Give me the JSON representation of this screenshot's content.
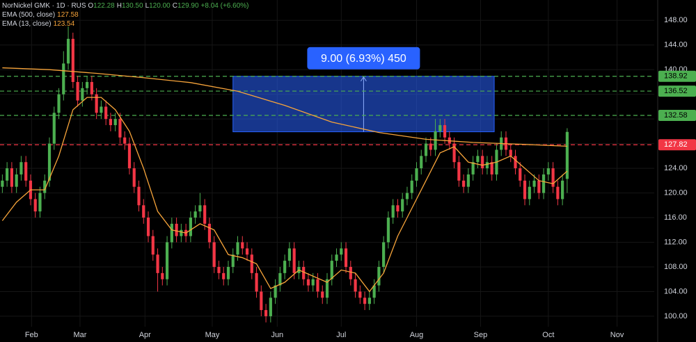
{
  "chart_data": {
    "type": "candlestick",
    "title": "NorNickel GMK · 1D · RUS",
    "header_items": [
      {
        "key": "O",
        "value": "122.28"
      },
      {
        "key": "H",
        "value": "130.50"
      },
      {
        "key": "L",
        "value": "120.00"
      },
      {
        "key": "C",
        "value": "129.90"
      },
      {
        "key": "",
        "value": "+8.04 (+6.60%)"
      }
    ],
    "up_color": "#4caf50",
    "down_color": "#f23645",
    "ohlc": [
      [
        121,
        123,
        120,
        122
      ],
      [
        122,
        125,
        121,
        124
      ],
      [
        124,
        125,
        120,
        121
      ],
      [
        121,
        124,
        120,
        123
      ],
      [
        123,
        126,
        122,
        125
      ],
      [
        125,
        126,
        121,
        122
      ],
      [
        122,
        123,
        118,
        119
      ],
      [
        119,
        120,
        116,
        117
      ],
      [
        117,
        121,
        116,
        120
      ],
      [
        120,
        123,
        119,
        122
      ],
      [
        122,
        129,
        121,
        128
      ],
      [
        128,
        134,
        127,
        133
      ],
      [
        133,
        137,
        132,
        136
      ],
      [
        136,
        143,
        135,
        141
      ],
      [
        141,
        147,
        140,
        145
      ],
      [
        145,
        146,
        137,
        138
      ],
      [
        138,
        139,
        134,
        135
      ],
      [
        135,
        138,
        134,
        137
      ],
      [
        137,
        139,
        136,
        138
      ],
      [
        138,
        139,
        135,
        136
      ],
      [
        136,
        137,
        132,
        133
      ],
      [
        133,
        135,
        132,
        134
      ],
      [
        134,
        135,
        131,
        132
      ],
      [
        132,
        133,
        130,
        131
      ],
      [
        131,
        133,
        130,
        132
      ],
      [
        132,
        133,
        128,
        129
      ],
      [
        129,
        130,
        127,
        128
      ],
      [
        128,
        129,
        123,
        124
      ],
      [
        124,
        125,
        120,
        121
      ],
      [
        121,
        122,
        117,
        118
      ],
      [
        118,
        119,
        115,
        116
      ],
      [
        116,
        117,
        112,
        113
      ],
      [
        113,
        114,
        109,
        110
      ],
      [
        110,
        111,
        104,
        107
      ],
      [
        107,
        108,
        105,
        106
      ],
      [
        106,
        113,
        105,
        112
      ],
      [
        112,
        116,
        111,
        115
      ],
      [
        115,
        116,
        112,
        113
      ],
      [
        113,
        115,
        112,
        114
      ],
      [
        114,
        115,
        112,
        113
      ],
      [
        113,
        117,
        112,
        116
      ],
      [
        116,
        118,
        115,
        117
      ],
      [
        117,
        120,
        116,
        118
      ],
      [
        118,
        119,
        114,
        115
      ],
      [
        115,
        116,
        111,
        112
      ],
      [
        112,
        113,
        107,
        108
      ],
      [
        108,
        109,
        106,
        107
      ],
      [
        107,
        108,
        105,
        106
      ],
      [
        106,
        109,
        105,
        108
      ],
      [
        108,
        111,
        107,
        110
      ],
      [
        110,
        113,
        109,
        112
      ],
      [
        112,
        113,
        110,
        111
      ],
      [
        111,
        112,
        109,
        110
      ],
      [
        110,
        111,
        106,
        107
      ],
      [
        107,
        108,
        103,
        104
      ],
      [
        104,
        105,
        100,
        101
      ],
      [
        101,
        102,
        99,
        100
      ],
      [
        100,
        104,
        99,
        103
      ],
      [
        103,
        106,
        102,
        105
      ],
      [
        105,
        108,
        104,
        107
      ],
      [
        107,
        110,
        106,
        109
      ],
      [
        109,
        112,
        108,
        111
      ],
      [
        111,
        112,
        106,
        107
      ],
      [
        107,
        109,
        106,
        108
      ],
      [
        108,
        109,
        105,
        106
      ],
      [
        106,
        107,
        104,
        105
      ],
      [
        105,
        107,
        104,
        106
      ],
      [
        106,
        107,
        103,
        104
      ],
      [
        104,
        105,
        102,
        103
      ],
      [
        103,
        107,
        102,
        106
      ],
      [
        106,
        110,
        105,
        109
      ],
      [
        109,
        111,
        108,
        110
      ],
      [
        110,
        112,
        109,
        111
      ],
      [
        111,
        112,
        107,
        108
      ],
      [
        108,
        109,
        105,
        106
      ],
      [
        106,
        107,
        103,
        104
      ],
      [
        104,
        105,
        102,
        103
      ],
      [
        103,
        104,
        101,
        102
      ],
      [
        102,
        104,
        101,
        103
      ],
      [
        103,
        106,
        102,
        105
      ],
      [
        105,
        109,
        104,
        108
      ],
      [
        108,
        113,
        107,
        112
      ],
      [
        112,
        117,
        111,
        116
      ],
      [
        116,
        119,
        115,
        118
      ],
      [
        118,
        119,
        116,
        117
      ],
      [
        117,
        120,
        116,
        119
      ],
      [
        119,
        121,
        118,
        120
      ],
      [
        120,
        123,
        119,
        122
      ],
      [
        122,
        125,
        121,
        124
      ],
      [
        124,
        127,
        123,
        126
      ],
      [
        126,
        129,
        125,
        128
      ],
      [
        128,
        129,
        126,
        127
      ],
      [
        127,
        132,
        126,
        130
      ],
      [
        130,
        132,
        129,
        131
      ],
      [
        131,
        132,
        128,
        129
      ],
      [
        129,
        130,
        127,
        128
      ],
      [
        128,
        129,
        124,
        125
      ],
      [
        125,
        126,
        121,
        122
      ],
      [
        122,
        123,
        120,
        121
      ],
      [
        121,
        124,
        120,
        123
      ],
      [
        123,
        126,
        122,
        125
      ],
      [
        125,
        127,
        124,
        126
      ],
      [
        126,
        127,
        123,
        124
      ],
      [
        124,
        126,
        123,
        125
      ],
      [
        125,
        126,
        122,
        123
      ],
      [
        123,
        128,
        122,
        127
      ],
      [
        127,
        130,
        126,
        129
      ],
      [
        129,
        130,
        126,
        127
      ],
      [
        127,
        128,
        125,
        126
      ],
      [
        126,
        127,
        123,
        124
      ],
      [
        124,
        125,
        121,
        122
      ],
      [
        122,
        123,
        118,
        119
      ],
      [
        119,
        122,
        118,
        121
      ],
      [
        121,
        123,
        120,
        122
      ],
      [
        122,
        123,
        119,
        120
      ],
      [
        120,
        124,
        119,
        123
      ],
      [
        123,
        125,
        122,
        124
      ],
      [
        124,
        125,
        120,
        121
      ],
      [
        121,
        122,
        118,
        119
      ],
      [
        119,
        123,
        118,
        122
      ],
      [
        122.28,
        130.5,
        120,
        129.9
      ]
    ],
    "series": [
      {
        "name": "EMA (500, close)",
        "value_label": "127.58",
        "color": "#f7a43a",
        "x": [
          0,
          10,
          20,
          30,
          40,
          50,
          60,
          70,
          80,
          90,
          100,
          110,
          120
        ],
        "values": [
          140.3,
          140.0,
          139.4,
          138.7,
          137.9,
          136.5,
          134.2,
          131.5,
          129.8,
          128.7,
          128.2,
          127.9,
          127.58
        ]
      },
      {
        "name": "EMA (13, close)",
        "value_label": "123.54",
        "color": "#f7a43a",
        "x": [
          0,
          3,
          6,
          9,
          12,
          15,
          18,
          21,
          24,
          27,
          30,
          33,
          36,
          39,
          42,
          45,
          48,
          51,
          54,
          57,
          60,
          63,
          66,
          69,
          72,
          75,
          78,
          81,
          84,
          87,
          90,
          93,
          96,
          99,
          102,
          105,
          108,
          111,
          114,
          117,
          120
        ],
        "values": [
          115.5,
          118.5,
          120.5,
          120.5,
          126,
          133.5,
          135.5,
          135.5,
          133.5,
          130,
          124,
          117,
          114,
          113.5,
          115,
          114,
          110,
          109.5,
          108.5,
          104.5,
          105.5,
          107.5,
          106.5,
          105.5,
          107.5,
          107,
          104,
          107,
          113,
          117.5,
          122,
          126.5,
          127.5,
          125,
          124.5,
          125,
          126,
          124,
          122,
          121.5,
          123.54
        ]
      }
    ],
    "hlines": [
      {
        "value": 138.92,
        "color": "#4caf50"
      },
      {
        "value": 136.52,
        "color": "#4caf50"
      },
      {
        "value": 132.58,
        "color": "#4caf50"
      },
      {
        "value": 127.82,
        "color": "#f23645"
      }
    ],
    "measure": {
      "label": "9.00 (6.93%) 450",
      "from": 129.92,
      "to": 138.92,
      "x": [
        49,
        104.5
      ],
      "color": "#2962ff"
    },
    "xlim": [
      -0.5,
      138.5
    ],
    "xticks": [
      {
        "value": 6.2,
        "label": "Feb"
      },
      {
        "value": 16.5,
        "label": "Mar"
      },
      {
        "value": 30.3,
        "label": "Apr"
      },
      {
        "value": 44.6,
        "label": "May"
      },
      {
        "value": 58.4,
        "label": "Jun"
      },
      {
        "value": 72,
        "label": "Jul"
      },
      {
        "value": 88,
        "label": "Aug"
      },
      {
        "value": 101.6,
        "label": "Sep"
      },
      {
        "value": 116,
        "label": "Oct"
      },
      {
        "value": 130.6,
        "label": "Nov"
      }
    ],
    "ylim": [
      98.3,
      151.3
    ],
    "yticks": [
      {
        "value": 100,
        "label": "100.00"
      },
      {
        "value": 104,
        "label": "104.00"
      },
      {
        "value": 108,
        "label": "108.00"
      },
      {
        "value": 112,
        "label": "112.00"
      },
      {
        "value": 116,
        "label": "116.00"
      },
      {
        "value": 120,
        "label": "120.00"
      },
      {
        "value": 124,
        "label": "124.00"
      },
      {
        "value": 128,
        "label": "128.00"
      },
      {
        "value": 132,
        "label": "132.00"
      },
      {
        "value": 136,
        "label": "136.00"
      },
      {
        "value": 140,
        "label": "140.00"
      },
      {
        "value": 144,
        "label": "144.00"
      },
      {
        "value": 148,
        "label": "148.00"
      }
    ],
    "grid": true
  }
}
